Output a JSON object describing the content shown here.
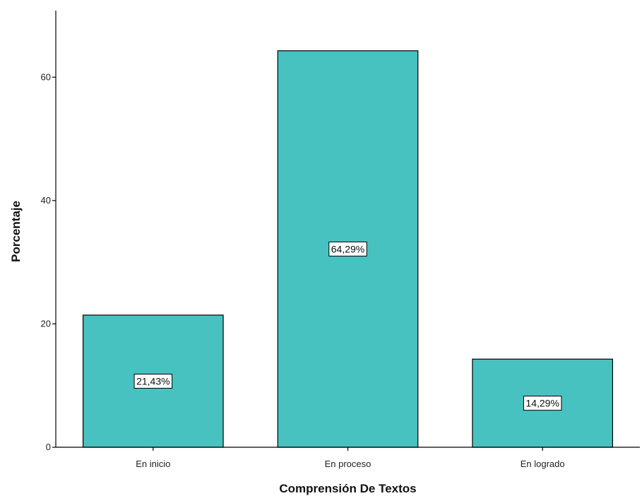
{
  "chart_data": {
    "type": "bar",
    "categories": [
      "En inicio",
      "En proceso",
      "En logrado"
    ],
    "values": [
      21.43,
      64.29,
      14.29
    ],
    "data_labels": [
      "21,43%",
      "64,29%",
      "14,29%"
    ],
    "title": "",
    "xlabel": "Comprensión De Textos",
    "ylabel": "Porcentaje",
    "ylim": [
      0,
      70
    ],
    "yticks": [
      0,
      20,
      40,
      60
    ],
    "ytick_labels": [
      "0",
      "20",
      "40",
      "60"
    ],
    "grid": false,
    "legend": "none",
    "bar_color": "#48C1C1"
  }
}
